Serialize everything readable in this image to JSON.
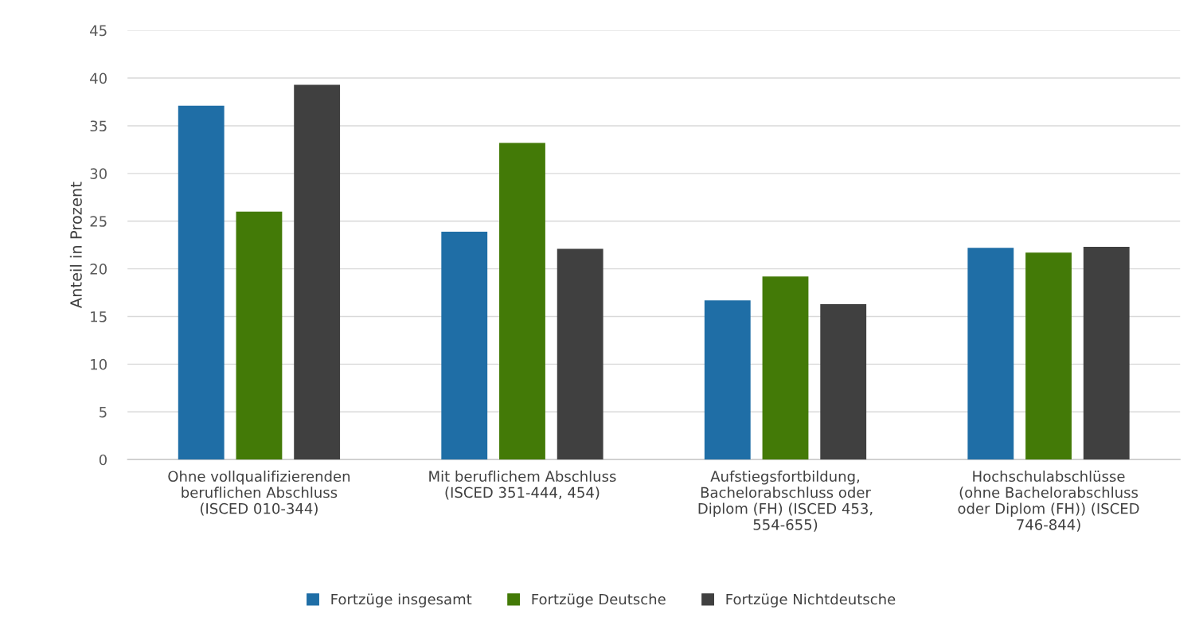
{
  "chart_data": {
    "type": "bar",
    "ylabel": "Anteil in Prozent",
    "categories": [
      "Ohne vollqualifizierenden\nberuflichen Abschluss\n(ISCED 010-344)",
      "Mit beruflichem Abschluss\n(ISCED 351-444, 454)",
      "Aufstiegsfortbildung,\nBachelorabschluss oder\nDiplom (FH) (ISCED 453,\n554-655)",
      "Hochschulabschlüsse\n(ohne Bachelorabschluss\noder Diplom (FH)) (ISCED\n746-844)"
    ],
    "series": [
      {
        "name": "Fortzüge insgesamt",
        "color": "#1f6ea6",
        "values": [
          37.1,
          23.9,
          16.7,
          22.2
        ]
      },
      {
        "name": "Fortzüge Deutsche",
        "color": "#437a07",
        "values": [
          26.0,
          33.2,
          19.2,
          21.7
        ]
      },
      {
        "name": "Fortzüge Nichtdeutsche",
        "color": "#404040",
        "values": [
          39.3,
          22.1,
          16.3,
          22.3
        ]
      }
    ],
    "ylim": [
      0,
      45
    ],
    "yticks": [
      0,
      5,
      10,
      15,
      20,
      25,
      30,
      35,
      40,
      45
    ],
    "grid": "y",
    "legend": "bottom"
  }
}
